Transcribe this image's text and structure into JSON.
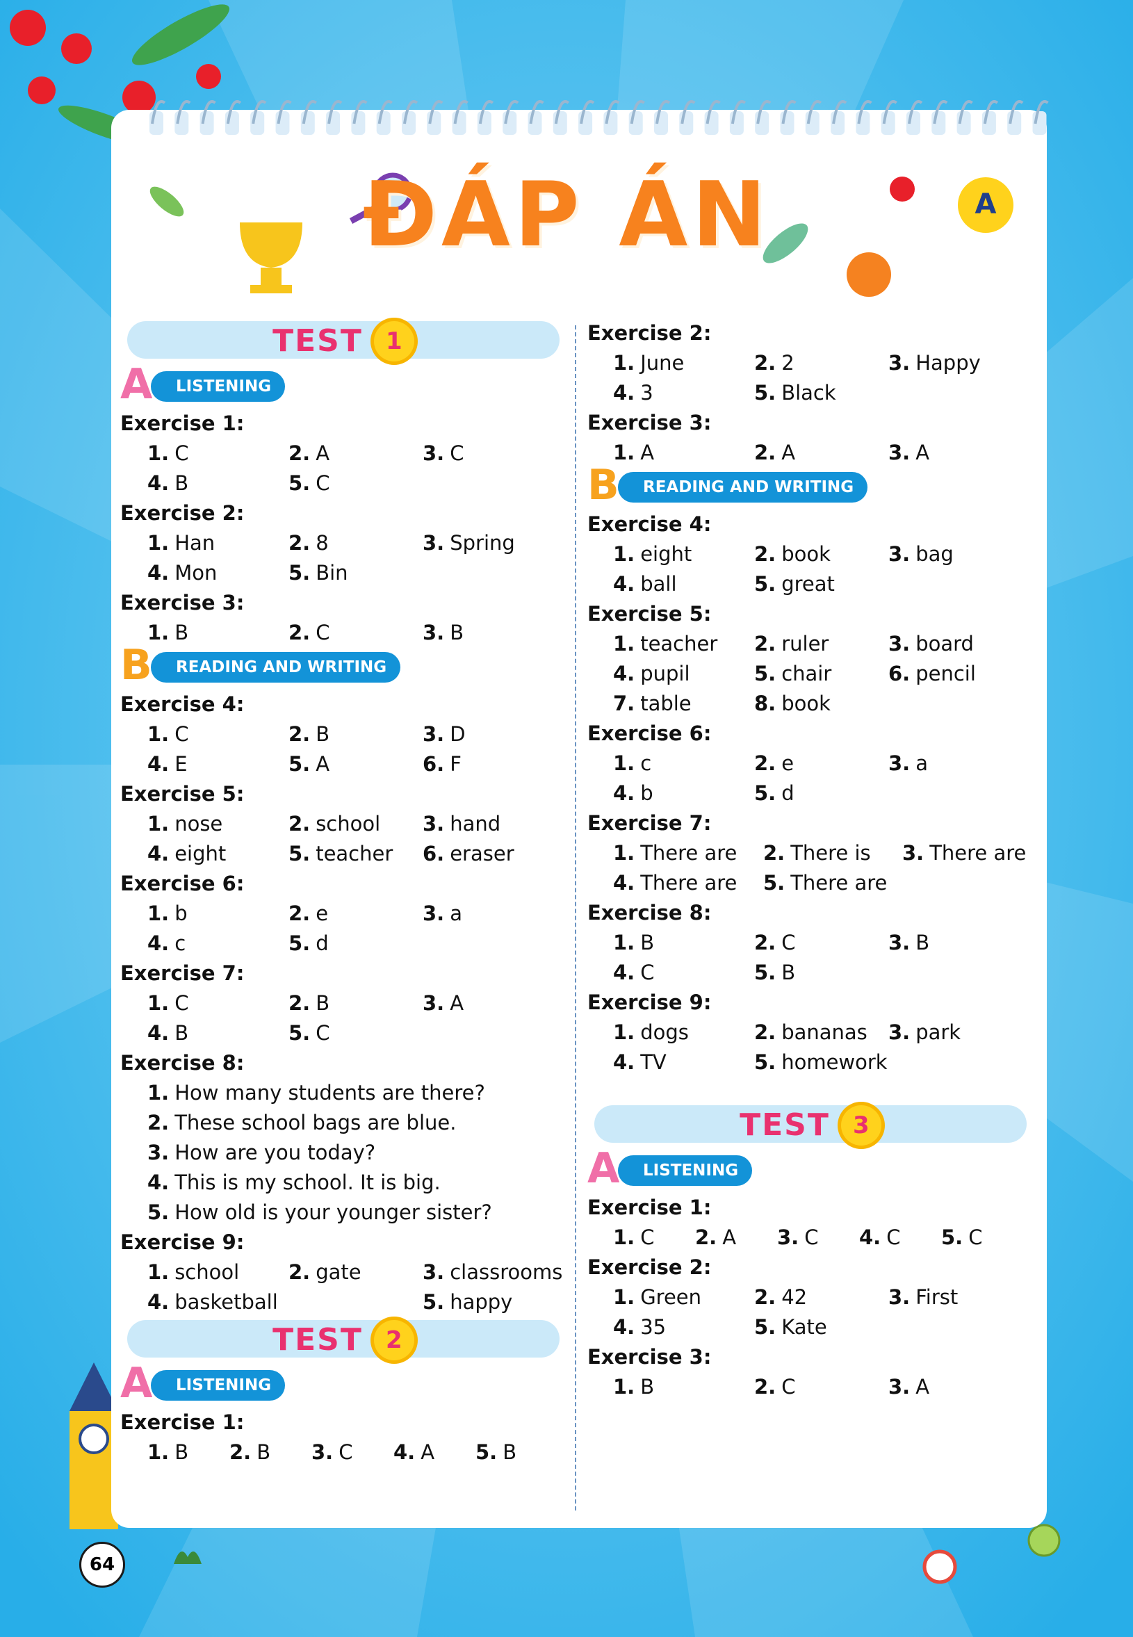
{
  "title": "ĐÁP ÁN",
  "page_number": "64",
  "columns": [
    [
      {
        "test": "TEST",
        "number": "1"
      },
      {
        "section": "LISTENING",
        "letter": "A"
      },
      {
        "exercise": "Exercise 1:",
        "rows": [
          [
            [
              "1.",
              "C"
            ],
            [
              "2.",
              "A"
            ],
            [
              "3.",
              "C"
            ]
          ],
          [
            [
              "4.",
              "B"
            ],
            [
              "5.",
              "C"
            ]
          ]
        ]
      },
      {
        "exercise": "Exercise 2:",
        "rows": [
          [
            [
              "1.",
              "Han"
            ],
            [
              "2.",
              "8"
            ],
            [
              "3.",
              "Spring"
            ]
          ],
          [
            [
              "4.",
              "Mon"
            ],
            [
              "5.",
              "Bin"
            ]
          ]
        ]
      },
      {
        "exercise": "Exercise 3:",
        "rows": [
          [
            [
              "1.",
              "B"
            ],
            [
              "2.",
              "C"
            ],
            [
              "3.",
              "B"
            ]
          ]
        ]
      },
      {
        "section": "READING AND WRITING",
        "letter": "B"
      },
      {
        "exercise": "Exercise 4:",
        "rows": [
          [
            [
              "1.",
              "C"
            ],
            [
              "2.",
              "B"
            ],
            [
              "3.",
              "D"
            ]
          ],
          [
            [
              "4.",
              "E"
            ],
            [
              "5.",
              "A"
            ],
            [
              "6.",
              "F"
            ]
          ]
        ]
      },
      {
        "exercise": "Exercise 5:",
        "rows": [
          [
            [
              "1.",
              "nose"
            ],
            [
              "2.",
              "school"
            ],
            [
              "3.",
              "hand"
            ]
          ],
          [
            [
              "4.",
              "eight"
            ],
            [
              "5.",
              "teacher"
            ],
            [
              "6.",
              "eraser"
            ]
          ]
        ]
      },
      {
        "exercise": "Exercise 6:",
        "rows": [
          [
            [
              "1.",
              "b"
            ],
            [
              "2.",
              "e"
            ],
            [
              "3.",
              "a"
            ]
          ],
          [
            [
              "4.",
              "c"
            ],
            [
              "5.",
              "d"
            ]
          ]
        ]
      },
      {
        "exercise": "Exercise 7:",
        "rows": [
          [
            [
              "1.",
              "C"
            ],
            [
              "2.",
              "B"
            ],
            [
              "3.",
              "A"
            ]
          ],
          [
            [
              "4.",
              "B"
            ],
            [
              "5.",
              "C"
            ]
          ]
        ]
      },
      {
        "exercise": "Exercise 8:",
        "rows": [
          [
            [
              "1.",
              "How many students are there?"
            ]
          ],
          [
            [
              "2.",
              "These school bags are blue."
            ]
          ],
          [
            [
              "3.",
              "How are you today?"
            ]
          ],
          [
            [
              "4.",
              "This is my school. It is big."
            ]
          ],
          [
            [
              "5.",
              "How old is your younger sister?"
            ]
          ]
        ]
      },
      {
        "exercise": "Exercise 9:",
        "rows": [
          [
            [
              "1.",
              "school"
            ],
            [
              "2.",
              "gate"
            ],
            [
              "3.",
              "classrooms"
            ]
          ],
          [
            [
              "4.",
              "basketball"
            ],
            [
              "5.",
              "happy"
            ]
          ]
        ]
      },
      {
        "test": "TEST",
        "number": "2"
      },
      {
        "section": "LISTENING",
        "letter": "A"
      },
      {
        "exercise": "Exercise 1:",
        "rows": [
          [
            [
              "1.",
              "B"
            ],
            [
              "2.",
              "B"
            ],
            [
              "3.",
              "C"
            ],
            [
              "4.",
              "A"
            ],
            [
              "5.",
              "B"
            ]
          ]
        ]
      }
    ],
    [
      {
        "exercise": "Exercise 2:",
        "rows": [
          [
            [
              "1.",
              "June"
            ],
            [
              "2.",
              "2"
            ],
            [
              "3.",
              "Happy"
            ]
          ],
          [
            [
              "4.",
              "3"
            ],
            [
              "5.",
              "Black"
            ]
          ]
        ]
      },
      {
        "exercise": "Exercise 3:",
        "rows": [
          [
            [
              "1.",
              "A"
            ],
            [
              "2.",
              "A"
            ],
            [
              "3.",
              "A"
            ]
          ]
        ]
      },
      {
        "section": "READING AND WRITING",
        "letter": "B"
      },
      {
        "exercise": "Exercise 4:",
        "rows": [
          [
            [
              "1.",
              "eight"
            ],
            [
              "2.",
              "book"
            ],
            [
              "3.",
              "bag"
            ]
          ],
          [
            [
              "4.",
              "ball"
            ],
            [
              "5.",
              "great"
            ]
          ]
        ]
      },
      {
        "exercise": "Exercise 5:",
        "rows": [
          [
            [
              "1.",
              "teacher"
            ],
            [
              "2.",
              "ruler"
            ],
            [
              "3.",
              "board"
            ]
          ],
          [
            [
              "4.",
              "pupil"
            ],
            [
              "5.",
              "chair"
            ],
            [
              "6.",
              "pencil"
            ]
          ],
          [
            [
              "7.",
              "table"
            ],
            [
              "8.",
              "book"
            ]
          ]
        ]
      },
      {
        "exercise": "Exercise 6:",
        "rows": [
          [
            [
              "1.",
              "c"
            ],
            [
              "2.",
              "e"
            ],
            [
              "3.",
              "a"
            ]
          ],
          [
            [
              "4.",
              "b"
            ],
            [
              "5.",
              "d"
            ]
          ]
        ]
      },
      {
        "exercise": "Exercise 7:",
        "rows": [
          [
            [
              "1.",
              "There are"
            ],
            [
              "2.",
              "There is"
            ],
            [
              "3.",
              "There are"
            ]
          ],
          [
            [
              "4.",
              "There are"
            ],
            [
              "5.",
              "There are"
            ]
          ]
        ]
      },
      {
        "exercise": "Exercise 8:",
        "rows": [
          [
            [
              "1.",
              "B"
            ],
            [
              "2.",
              "C"
            ],
            [
              "3.",
              "B"
            ]
          ],
          [
            [
              "4.",
              "C"
            ],
            [
              "5.",
              "B"
            ]
          ]
        ]
      },
      {
        "exercise": "Exercise 9:",
        "rows": [
          [
            [
              "1.",
              "dogs"
            ],
            [
              "2.",
              "bananas"
            ],
            [
              "3.",
              "park"
            ]
          ],
          [
            [
              "4.",
              "TV"
            ],
            [
              "5.",
              "homework"
            ]
          ]
        ]
      },
      {
        "test": "TEST",
        "number": "3"
      },
      {
        "section": "LISTENING",
        "letter": "A"
      },
      {
        "exercise": "Exercise 1:",
        "rows": [
          [
            [
              "1.",
              "C"
            ],
            [
              "2.",
              "A"
            ],
            [
              "3.",
              "C"
            ],
            [
              "4.",
              "C"
            ],
            [
              "5.",
              "C"
            ]
          ]
        ]
      },
      {
        "exercise": "Exercise 2:",
        "rows": [
          [
            [
              "1.",
              "Green"
            ],
            [
              "2.",
              "42"
            ],
            [
              "3.",
              "First"
            ]
          ],
          [
            [
              "4.",
              "35"
            ],
            [
              "5.",
              "Kate"
            ]
          ]
        ]
      },
      {
        "exercise": "Exercise 3:",
        "rows": [
          [
            [
              "1.",
              "B"
            ],
            [
              "2.",
              "C"
            ],
            [
              "3.",
              "A"
            ]
          ]
        ]
      }
    ]
  ]
}
